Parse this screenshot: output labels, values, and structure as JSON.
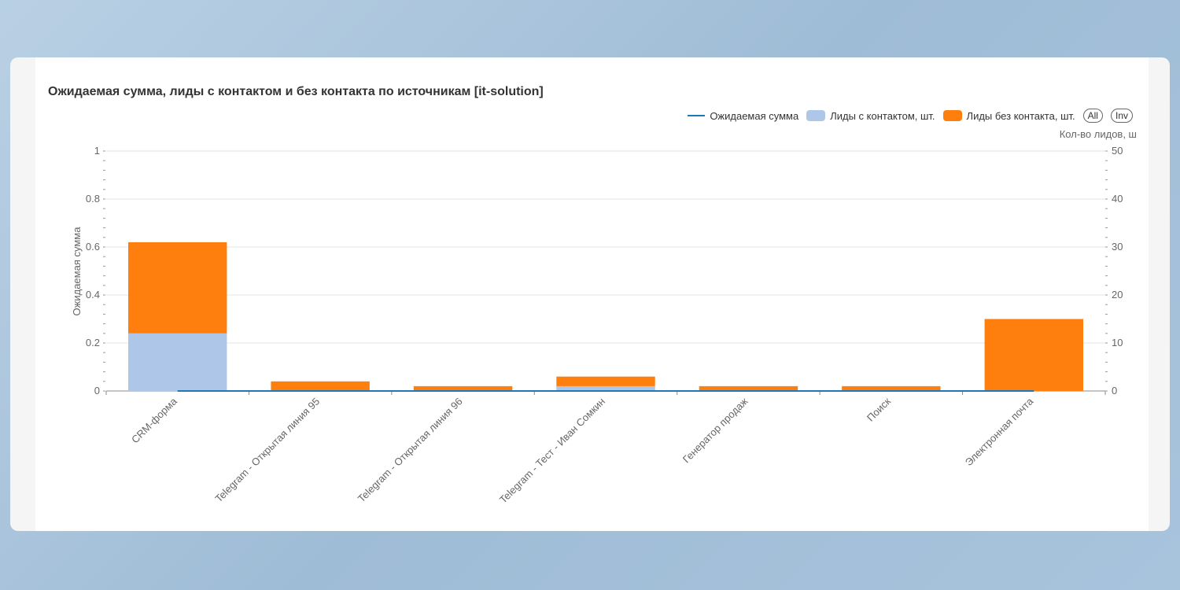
{
  "chart_data": {
    "type": "bar",
    "title": "Ожидаемая сумма, лиды с контактом и без контакта по источникам [it-solution]",
    "categories": [
      "CRM-форма",
      "Telegram - Открытая линия 95",
      "Telegram - Открытая линия 96",
      "Telegram - Тест - Иван Сомкин",
      "Генератор продаж",
      "Поиск",
      "Электронная почта"
    ],
    "series": [
      {
        "name": "Ожидаемая сумма",
        "type": "line",
        "axis": "left",
        "color": "#1f77b4",
        "values": [
          0,
          0,
          0,
          0,
          0,
          0,
          0
        ]
      },
      {
        "name": "Лиды с контактом, шт.",
        "type": "bar",
        "axis": "right",
        "stack": true,
        "color": "#aec7e8",
        "values": [
          12,
          0,
          0,
          1,
          0,
          0,
          0
        ]
      },
      {
        "name": "Лиды без контакта, шт.",
        "type": "bar",
        "axis": "right",
        "stack": true,
        "color": "#ff7f0e",
        "values": [
          19,
          2,
          1,
          2,
          1,
          1,
          15
        ]
      }
    ],
    "y_left": {
      "label": "Ожидаемая сумма",
      "range": [
        0,
        1
      ],
      "ticks": [
        "0",
        "0.2",
        "0.4",
        "0.6",
        "0.8",
        "1"
      ]
    },
    "y_right": {
      "label": "Кол-во лидов, ш",
      "range": [
        0,
        50
      ],
      "ticks": [
        "0",
        "10",
        "20",
        "30",
        "40",
        "50"
      ]
    },
    "grid": true,
    "legend": "top-right"
  },
  "legend_buttons": {
    "all": "All",
    "inv": "Inv"
  }
}
